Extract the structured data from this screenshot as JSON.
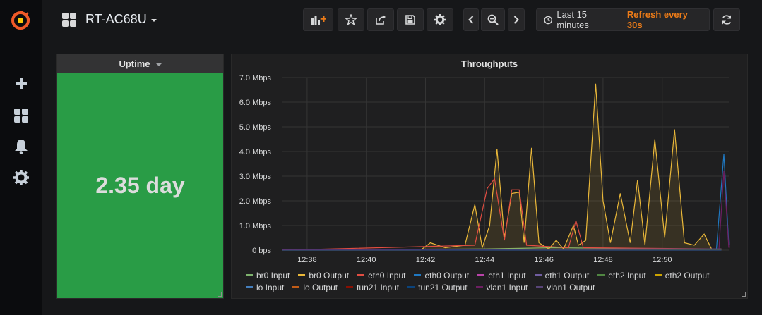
{
  "sidebar": {
    "items": [
      {
        "name": "create",
        "icon": "plus-icon"
      },
      {
        "name": "dashboards",
        "icon": "dashboards-icon"
      },
      {
        "name": "alerting",
        "icon": "bell-icon"
      },
      {
        "name": "configuration",
        "icon": "gear-icon"
      }
    ]
  },
  "header": {
    "dashboard_title": "RT-AC68U",
    "time_range": "Last 15 minutes",
    "refresh": "Refresh every 30s"
  },
  "uptime_panel": {
    "title": "Uptime",
    "value": "2.35 day",
    "color": "#299c46"
  },
  "throughput_panel": {
    "title": "Throughputs"
  },
  "chart_data": {
    "type": "line",
    "title": "Throughputs",
    "x_ticks": [
      "12:38",
      "12:40",
      "12:42",
      "12:44",
      "12:46",
      "12:48",
      "12:50"
    ],
    "y_ticks": [
      "0 bps",
      "1.0 Mbps",
      "2.0 Mbps",
      "3.0 Mbps",
      "4.0 Mbps",
      "5.0 Mbps",
      "6.0 Mbps",
      "7.0 Mbps"
    ],
    "ylim": [
      0,
      7.0
    ],
    "y_unit": "Mbps",
    "x_range_minutes": [
      12.37,
      12.52
    ],
    "grid": true,
    "legend_position": "bottom",
    "series": [
      {
        "name": "br0 Input",
        "color": "#7eb26d",
        "points": [
          [
            "12:37:10",
            0.02
          ],
          [
            "12:44:00",
            0.05
          ],
          [
            "12:46:20",
            0.1
          ],
          [
            "12:52:00",
            0.03
          ]
        ]
      },
      {
        "name": "br0 Output",
        "color": "#eab839",
        "fill": true,
        "points": [
          [
            "12:37:10",
            0.0
          ],
          [
            "12:41:50",
            0.0
          ],
          [
            "12:42:10",
            0.3
          ],
          [
            "12:42:40",
            0.1
          ],
          [
            "12:43:20",
            0.2
          ],
          [
            "12:43:40",
            1.85
          ],
          [
            "12:43:55",
            0.1
          ],
          [
            "12:44:10",
            1.0
          ],
          [
            "12:44:25",
            4.1
          ],
          [
            "12:44:40",
            0.5
          ],
          [
            "12:44:55",
            2.3
          ],
          [
            "12:45:10",
            2.35
          ],
          [
            "12:45:20",
            0.3
          ],
          [
            "12:45:35",
            4.15
          ],
          [
            "12:45:50",
            0.3
          ],
          [
            "12:46:10",
            0.05
          ],
          [
            "12:46:25",
            0.4
          ],
          [
            "12:46:40",
            0.05
          ],
          [
            "12:47:00",
            1.0
          ],
          [
            "12:47:10",
            0.2
          ],
          [
            "12:47:25",
            0.4
          ],
          [
            "12:47:45",
            6.75
          ],
          [
            "12:48:00",
            2.0
          ],
          [
            "12:48:15",
            0.3
          ],
          [
            "12:48:35",
            2.3
          ],
          [
            "12:48:55",
            0.3
          ],
          [
            "12:49:10",
            2.85
          ],
          [
            "12:49:25",
            0.2
          ],
          [
            "12:49:45",
            4.5
          ],
          [
            "12:50:05",
            0.5
          ],
          [
            "12:50:25",
            4.9
          ],
          [
            "12:50:45",
            0.3
          ],
          [
            "12:51:05",
            0.2
          ],
          [
            "12:51:25",
            0.65
          ],
          [
            "12:51:40",
            0.05
          ],
          [
            "12:52:00",
            0.05
          ]
        ]
      },
      {
        "name": "eth0 Input",
        "color": "#e24d42",
        "points": [
          [
            "12:37:10",
            0.0
          ],
          [
            "12:43:40",
            0.2
          ],
          [
            "12:44:05",
            2.5
          ],
          [
            "12:44:20",
            2.9
          ],
          [
            "12:44:40",
            0.4
          ],
          [
            "12:44:55",
            2.45
          ],
          [
            "12:45:10",
            2.45
          ],
          [
            "12:45:25",
            0.2
          ],
          [
            "12:46:50",
            0.1
          ],
          [
            "12:47:05",
            1.2
          ],
          [
            "12:47:20",
            0.1
          ],
          [
            "12:52:00",
            0.05
          ]
        ]
      },
      {
        "name": "eth0 Output",
        "color": "#1f78c1",
        "points": [
          [
            "12:37:10",
            0.02
          ],
          [
            "12:51:50",
            0.05
          ],
          [
            "12:52:05",
            3.9
          ],
          [
            "12:52:15",
            0.2
          ]
        ]
      },
      {
        "name": "eth1 Input",
        "color": "#ba43a9",
        "points": [
          [
            "12:37:10",
            0.01
          ],
          [
            "12:52:00",
            0.01
          ]
        ]
      },
      {
        "name": "eth1 Output",
        "color": "#705da0",
        "points": [
          [
            "12:37:10",
            0.01
          ],
          [
            "12:52:00",
            0.01
          ]
        ]
      },
      {
        "name": "eth2 Input",
        "color": "#508642",
        "points": [
          [
            "12:37:10",
            0.01
          ],
          [
            "12:52:00",
            0.01
          ]
        ]
      },
      {
        "name": "eth2 Output",
        "color": "#cca300",
        "points": [
          [
            "12:37:10",
            0.01
          ],
          [
            "12:52:00",
            0.01
          ]
        ]
      },
      {
        "name": "lo Input",
        "color": "#447ebc",
        "points": [
          [
            "12:37:10",
            0.0
          ],
          [
            "12:52:00",
            0.0
          ]
        ]
      },
      {
        "name": "lo Output",
        "color": "#c15c17",
        "points": [
          [
            "12:37:10",
            0.0
          ],
          [
            "12:52:00",
            0.0
          ]
        ]
      },
      {
        "name": "tun21 Input",
        "color": "#890f02",
        "points": [
          [
            "12:37:10",
            0.0
          ],
          [
            "12:52:00",
            0.0
          ]
        ]
      },
      {
        "name": "tun21 Output",
        "color": "#0a437c",
        "points": [
          [
            "12:37:10",
            0.0
          ],
          [
            "12:52:00",
            0.0
          ]
        ]
      },
      {
        "name": "vlan1 Input",
        "color": "#6d1f62",
        "points": [
          [
            "12:37:10",
            0.02
          ],
          [
            "12:51:55",
            0.05
          ],
          [
            "12:52:05",
            3.2
          ],
          [
            "12:52:15",
            0.1
          ]
        ]
      },
      {
        "name": "vlan1 Output",
        "color": "#584477",
        "points": [
          [
            "12:37:10",
            0.03
          ],
          [
            "12:52:00",
            0.05
          ]
        ]
      }
    ]
  }
}
